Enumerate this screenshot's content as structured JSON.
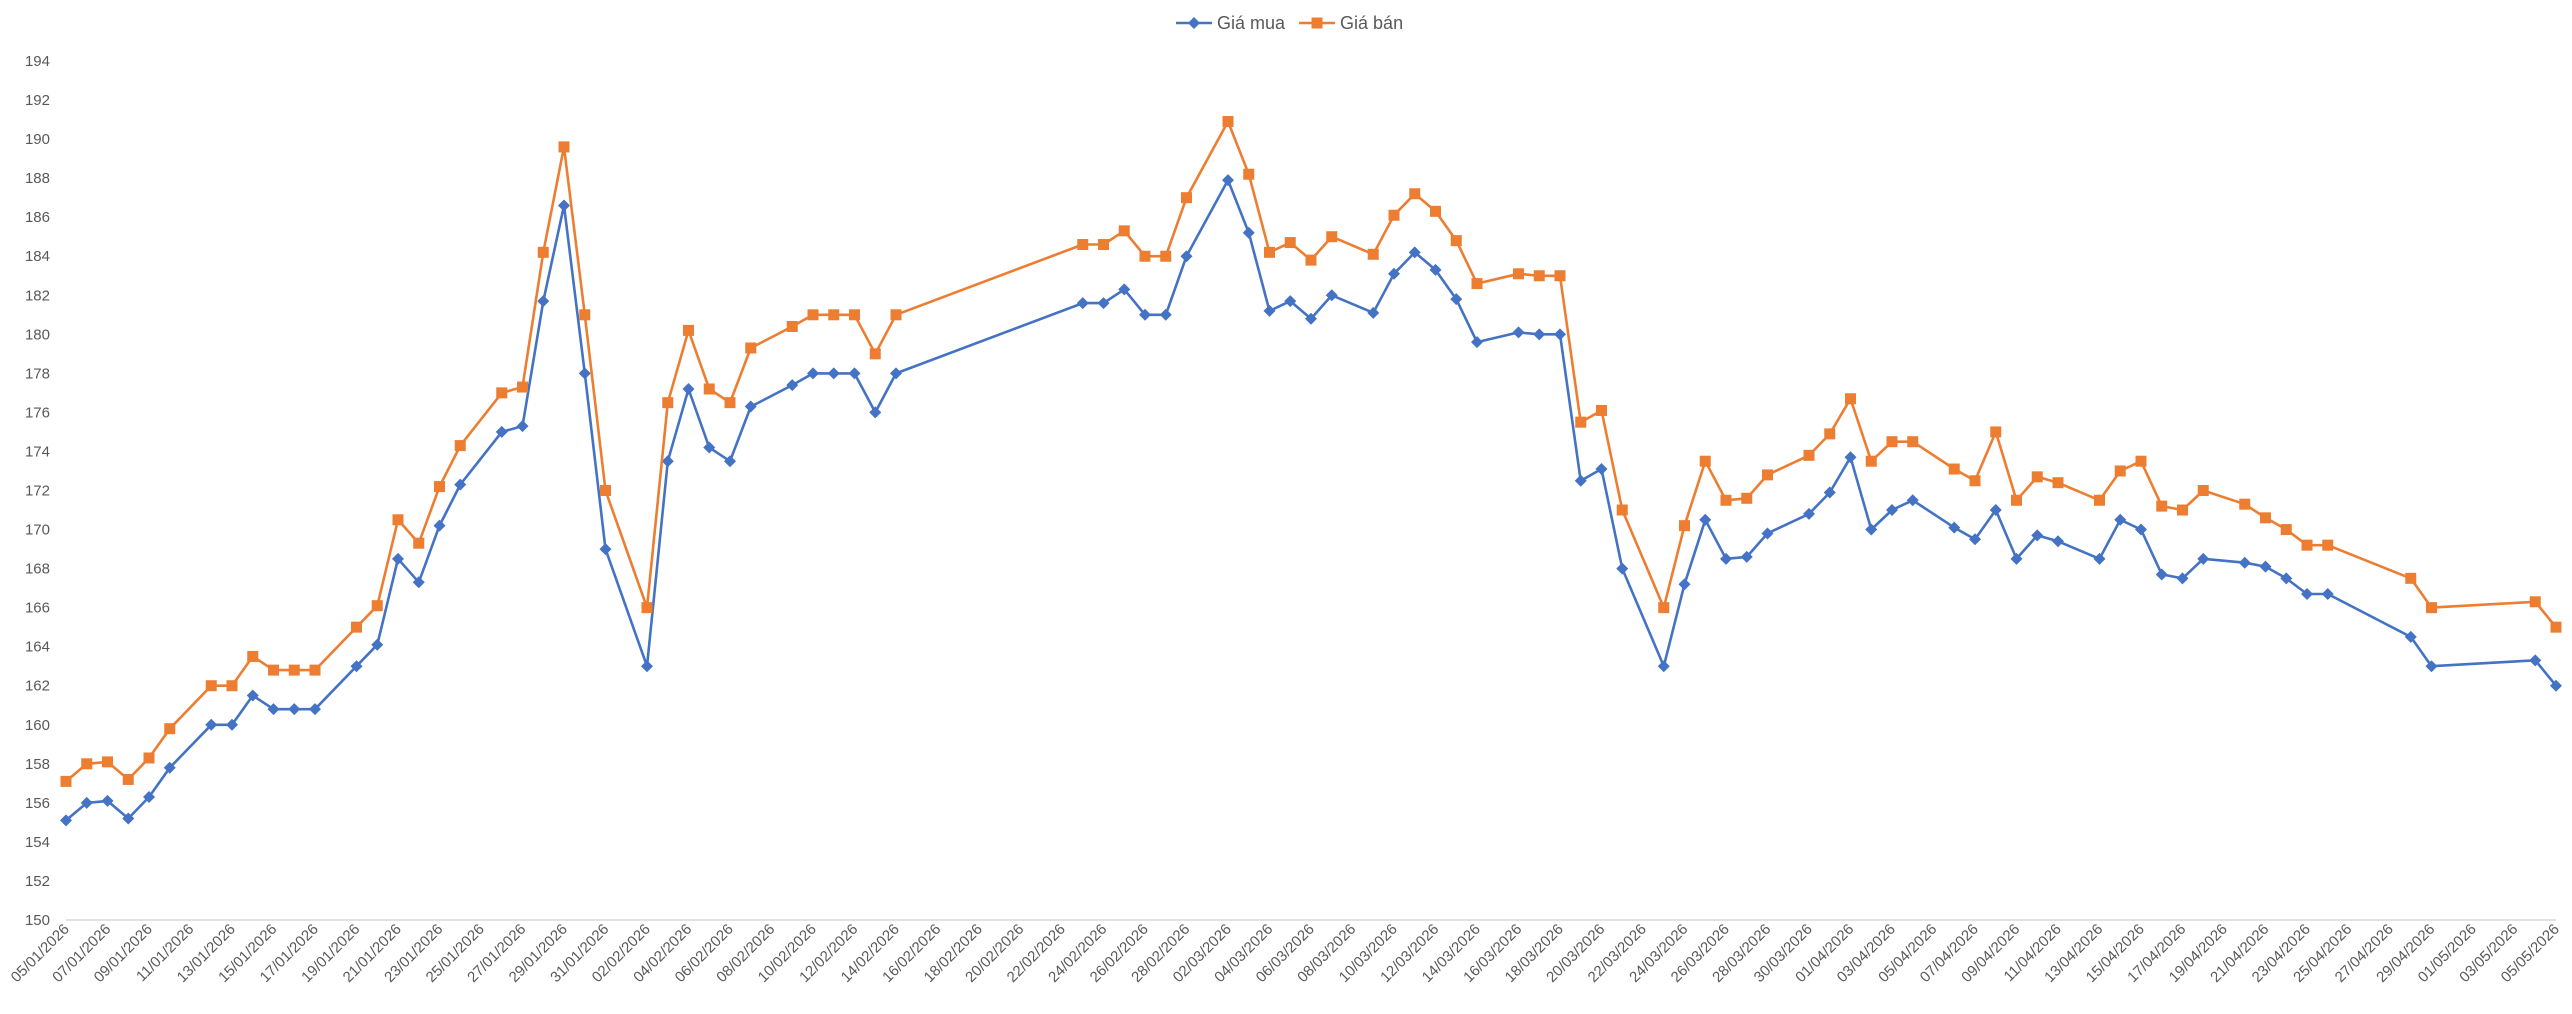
{
  "chart_data": {
    "type": "line",
    "title": "",
    "xlabel": "",
    "ylabel": "",
    "ylim": [
      150,
      194
    ],
    "yticks": [
      150,
      152,
      154,
      156,
      158,
      160,
      162,
      164,
      166,
      168,
      170,
      172,
      174,
      176,
      178,
      180,
      182,
      184,
      186,
      188,
      190,
      192,
      194
    ],
    "xlim": [
      "05/01/2026",
      "05/05/2026"
    ],
    "xticks": [
      "05/01/2026",
      "07/01/2026",
      "09/01/2026",
      "11/01/2026",
      "13/01/2026",
      "15/01/2026",
      "17/01/2026",
      "19/01/2026",
      "21/01/2026",
      "23/01/2026",
      "25/01/2026",
      "27/01/2026",
      "29/01/2026",
      "31/01/2026",
      "02/02/2026",
      "04/02/2026",
      "06/02/2026",
      "08/02/2026",
      "10/02/2026",
      "12/02/2026",
      "14/02/2026",
      "16/02/2026",
      "18/02/2026",
      "20/02/2026",
      "22/02/2026",
      "24/02/2026",
      "26/02/2026",
      "28/02/2026",
      "02/03/2026",
      "04/03/2026",
      "06/03/2026",
      "08/03/2026",
      "10/03/2026",
      "12/03/2026",
      "14/03/2026",
      "16/03/2026",
      "18/03/2026",
      "20/03/2026",
      "22/03/2026",
      "24/03/2026",
      "26/03/2026",
      "28/03/2026",
      "30/03/2026",
      "01/04/2026",
      "03/04/2026",
      "05/04/2026",
      "07/04/2026",
      "09/04/2026",
      "11/04/2026",
      "13/04/2026",
      "15/04/2026",
      "17/04/2026",
      "19/04/2026",
      "21/04/2026",
      "23/04/2026",
      "25/04/2026",
      "27/04/2026",
      "29/04/2026",
      "01/05/2026",
      "03/05/2026",
      "05/05/2026"
    ],
    "legend_position": "top-center",
    "grid": false,
    "series": [
      {
        "name": "Giá mua",
        "color": "#4472C4",
        "marker": "diamond",
        "points": [
          [
            "05/01/2026",
            155.1
          ],
          [
            "06/01/2026",
            156.0
          ],
          [
            "07/01/2026",
            156.1
          ],
          [
            "08/01/2026",
            155.2
          ],
          [
            "09/01/2026",
            156.3
          ],
          [
            "10/01/2026",
            157.8
          ],
          [
            "12/01/2026",
            160.0
          ],
          [
            "13/01/2026",
            160.0
          ],
          [
            "14/01/2026",
            161.5
          ],
          [
            "15/01/2026",
            160.8
          ],
          [
            "16/01/2026",
            160.8
          ],
          [
            "17/01/2026",
            160.8
          ],
          [
            "19/01/2026",
            163.0
          ],
          [
            "20/01/2026",
            164.1
          ],
          [
            "21/01/2026",
            168.5
          ],
          [
            "22/01/2026",
            167.3
          ],
          [
            "23/01/2026",
            170.2
          ],
          [
            "24/01/2026",
            172.3
          ],
          [
            "26/01/2026",
            175.0
          ],
          [
            "27/01/2026",
            175.3
          ],
          [
            "28/01/2026",
            181.7
          ],
          [
            "29/01/2026",
            186.6
          ],
          [
            "30/01/2026",
            178.0
          ],
          [
            "31/01/2026",
            169.0
          ],
          [
            "02/02/2026",
            163.0
          ],
          [
            "03/02/2026",
            173.5
          ],
          [
            "04/02/2026",
            177.2
          ],
          [
            "05/02/2026",
            174.2
          ],
          [
            "06/02/2026",
            173.5
          ],
          [
            "07/02/2026",
            176.3
          ],
          [
            "09/02/2026",
            177.4
          ],
          [
            "10/02/2026",
            178.0
          ],
          [
            "11/02/2026",
            178.0
          ],
          [
            "12/02/2026",
            178.0
          ],
          [
            "13/02/2026",
            176.0
          ],
          [
            "14/02/2026",
            178.0
          ],
          [
            "23/02/2026",
            181.6
          ],
          [
            "24/02/2026",
            181.6
          ],
          [
            "25/02/2026",
            182.3
          ],
          [
            "26/02/2026",
            181.0
          ],
          [
            "27/02/2026",
            181.0
          ],
          [
            "28/02/2026",
            184.0
          ],
          [
            "02/03/2026",
            187.9
          ],
          [
            "03/03/2026",
            185.2
          ],
          [
            "04/03/2026",
            181.2
          ],
          [
            "05/03/2026",
            181.7
          ],
          [
            "06/03/2026",
            180.8
          ],
          [
            "07/03/2026",
            182.0
          ],
          [
            "09/03/2026",
            181.1
          ],
          [
            "10/03/2026",
            183.1
          ],
          [
            "11/03/2026",
            184.2
          ],
          [
            "12/03/2026",
            183.3
          ],
          [
            "13/03/2026",
            181.8
          ],
          [
            "14/03/2026",
            179.6
          ],
          [
            "16/03/2026",
            180.1
          ],
          [
            "17/03/2026",
            180.0
          ],
          [
            "18/03/2026",
            180.0
          ],
          [
            "19/03/2026",
            172.5
          ],
          [
            "20/03/2026",
            173.1
          ],
          [
            "21/03/2026",
            168.0
          ],
          [
            "23/03/2026",
            163.0
          ],
          [
            "24/03/2026",
            167.2
          ],
          [
            "25/03/2026",
            170.5
          ],
          [
            "26/03/2026",
            168.5
          ],
          [
            "27/03/2026",
            168.6
          ],
          [
            "28/03/2026",
            169.8
          ],
          [
            "30/03/2026",
            170.8
          ],
          [
            "31/03/2026",
            171.9
          ],
          [
            "01/04/2026",
            173.7
          ],
          [
            "02/04/2026",
            170.0
          ],
          [
            "03/04/2026",
            171.0
          ],
          [
            "04/04/2026",
            171.5
          ],
          [
            "06/04/2026",
            170.1
          ],
          [
            "07/04/2026",
            169.5
          ],
          [
            "08/04/2026",
            171.0
          ],
          [
            "09/04/2026",
            168.5
          ],
          [
            "10/04/2026",
            169.7
          ],
          [
            "11/04/2026",
            169.4
          ],
          [
            "13/04/2026",
            168.5
          ],
          [
            "14/04/2026",
            170.5
          ],
          [
            "15/04/2026",
            170.0
          ],
          [
            "16/04/2026",
            167.7
          ],
          [
            "17/04/2026",
            167.5
          ],
          [
            "18/04/2026",
            168.5
          ],
          [
            "20/04/2026",
            168.3
          ],
          [
            "21/04/2026",
            168.1
          ],
          [
            "22/04/2026",
            167.5
          ],
          [
            "23/04/2026",
            166.7
          ],
          [
            "24/04/2026",
            166.7
          ],
          [
            "28/04/2026",
            164.5
          ],
          [
            "29/04/2026",
            163.0
          ],
          [
            "04/05/2026",
            163.3
          ],
          [
            "05/05/2026",
            162.0
          ]
        ]
      },
      {
        "name": "Giá bán",
        "color": "#ED7D31",
        "marker": "square",
        "points": [
          [
            "05/01/2026",
            157.1
          ],
          [
            "06/01/2026",
            158.0
          ],
          [
            "07/01/2026",
            158.1
          ],
          [
            "08/01/2026",
            157.2
          ],
          [
            "09/01/2026",
            158.3
          ],
          [
            "10/01/2026",
            159.8
          ],
          [
            "12/01/2026",
            162.0
          ],
          [
            "13/01/2026",
            162.0
          ],
          [
            "14/01/2026",
            163.5
          ],
          [
            "15/01/2026",
            162.8
          ],
          [
            "16/01/2026",
            162.8
          ],
          [
            "17/01/2026",
            162.8
          ],
          [
            "19/01/2026",
            165.0
          ],
          [
            "20/01/2026",
            166.1
          ],
          [
            "21/01/2026",
            170.5
          ],
          [
            "22/01/2026",
            169.3
          ],
          [
            "23/01/2026",
            172.2
          ],
          [
            "24/01/2026",
            174.3
          ],
          [
            "26/01/2026",
            177.0
          ],
          [
            "27/01/2026",
            177.3
          ],
          [
            "28/01/2026",
            184.2
          ],
          [
            "29/01/2026",
            189.6
          ],
          [
            "30/01/2026",
            181.0
          ],
          [
            "31/01/2026",
            172.0
          ],
          [
            "02/02/2026",
            166.0
          ],
          [
            "03/02/2026",
            176.5
          ],
          [
            "04/02/2026",
            180.2
          ],
          [
            "05/02/2026",
            177.2
          ],
          [
            "06/02/2026",
            176.5
          ],
          [
            "07/02/2026",
            179.3
          ],
          [
            "09/02/2026",
            180.4
          ],
          [
            "10/02/2026",
            181.0
          ],
          [
            "11/02/2026",
            181.0
          ],
          [
            "12/02/2026",
            181.0
          ],
          [
            "13/02/2026",
            179.0
          ],
          [
            "14/02/2026",
            181.0
          ],
          [
            "23/02/2026",
            184.6
          ],
          [
            "24/02/2026",
            184.6
          ],
          [
            "25/02/2026",
            185.3
          ],
          [
            "26/02/2026",
            184.0
          ],
          [
            "27/02/2026",
            184.0
          ],
          [
            "28/02/2026",
            187.0
          ],
          [
            "02/03/2026",
            190.9
          ],
          [
            "03/03/2026",
            188.2
          ],
          [
            "04/03/2026",
            184.2
          ],
          [
            "05/03/2026",
            184.7
          ],
          [
            "06/03/2026",
            183.8
          ],
          [
            "07/03/2026",
            185.0
          ],
          [
            "09/03/2026",
            184.1
          ],
          [
            "10/03/2026",
            186.1
          ],
          [
            "11/03/2026",
            187.2
          ],
          [
            "12/03/2026",
            186.3
          ],
          [
            "13/03/2026",
            184.8
          ],
          [
            "14/03/2026",
            182.6
          ],
          [
            "16/03/2026",
            183.1
          ],
          [
            "17/03/2026",
            183.0
          ],
          [
            "18/03/2026",
            183.0
          ],
          [
            "19/03/2026",
            175.5
          ],
          [
            "20/03/2026",
            176.1
          ],
          [
            "21/03/2026",
            171.0
          ],
          [
            "23/03/2026",
            166.0
          ],
          [
            "24/03/2026",
            170.2
          ],
          [
            "25/03/2026",
            173.5
          ],
          [
            "26/03/2026",
            171.5
          ],
          [
            "27/03/2026",
            171.6
          ],
          [
            "28/03/2026",
            172.8
          ],
          [
            "30/03/2026",
            173.8
          ],
          [
            "31/03/2026",
            174.9
          ],
          [
            "01/04/2026",
            176.7
          ],
          [
            "02/04/2026",
            173.5
          ],
          [
            "03/04/2026",
            174.5
          ],
          [
            "04/04/2026",
            174.5
          ],
          [
            "06/04/2026",
            173.1
          ],
          [
            "07/04/2026",
            172.5
          ],
          [
            "08/04/2026",
            175.0
          ],
          [
            "09/04/2026",
            171.5
          ],
          [
            "10/04/2026",
            172.7
          ],
          [
            "11/04/2026",
            172.4
          ],
          [
            "13/04/2026",
            171.5
          ],
          [
            "14/04/2026",
            173.0
          ],
          [
            "15/04/2026",
            173.5
          ],
          [
            "16/04/2026",
            171.2
          ],
          [
            "17/04/2026",
            171.0
          ],
          [
            "18/04/2026",
            172.0
          ],
          [
            "20/04/2026",
            171.3
          ],
          [
            "21/04/2026",
            170.6
          ],
          [
            "22/04/2026",
            170.0
          ],
          [
            "23/04/2026",
            169.2
          ],
          [
            "24/04/2026",
            169.2
          ],
          [
            "28/04/2026",
            167.5
          ],
          [
            "29/04/2026",
            166.0
          ],
          [
            "04/05/2026",
            166.3
          ],
          [
            "05/05/2026",
            165.0
          ]
        ]
      }
    ]
  }
}
